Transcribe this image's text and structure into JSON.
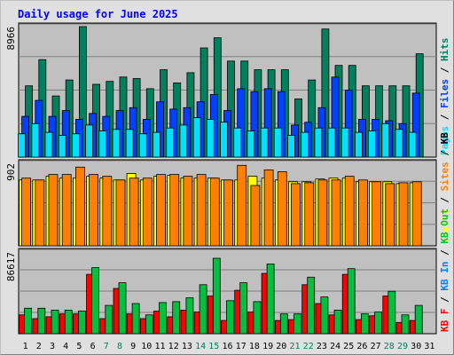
{
  "chart_data": {
    "type": "bar",
    "title": "Daily usage for June 2025",
    "days": [
      "1",
      "2",
      "3",
      "4",
      "5",
      "6",
      "7",
      "8",
      "9",
      "10",
      "11",
      "12",
      "13",
      "14",
      "15",
      "16",
      "17",
      "18",
      "19",
      "20",
      "21",
      "22",
      "23",
      "24",
      "25",
      "26",
      "27",
      "28",
      "29",
      "30",
      "31"
    ],
    "weekend_days": [
      "7",
      "8",
      "14",
      "15",
      "21",
      "22",
      "28",
      "29"
    ],
    "colors": {
      "title": "#0000ff",
      "background": "#e0e0e0",
      "panel": "#c0c0c0",
      "hits": "#00805c",
      "files": "#0040ff",
      "pages": "#00e0ff",
      "visits": "#ffff00",
      "sites": "#ff8000",
      "kb_out": "#00c040",
      "kb_in": "#0080ff",
      "kb_f": "#ff0000",
      "weekday_tick": "#000000",
      "weekend_tick": "#00805c"
    },
    "panels": [
      {
        "ymax_label": "8966",
        "ymax": 8966,
        "legend": [
          {
            "text": "Pages",
            "color": "#00e0ff"
          },
          {
            "text": " / ",
            "color": "#000000"
          },
          {
            "text": "Files",
            "color": "#0040ff"
          },
          {
            "text": " / ",
            "color": "#000000"
          },
          {
            "text": "Hits",
            "color": "#00805c"
          }
        ],
        "series": [
          {
            "name": "Hits",
            "color": "#00805c",
            "values": [
              4900,
              6700,
              4200,
              5300,
              8966,
              5000,
              5200,
              5500,
              5400,
              4700,
              6000,
              5100,
              5800,
              7500,
              8200,
              6600,
              6600,
              6000,
              6000,
              6000,
              4000,
              5300,
              8800,
              6300,
              6300,
              4900,
              4900,
              4900,
              4900,
              7100,
              0
            ]
          },
          {
            "name": "Files",
            "color": "#0040ff",
            "values": [
              2800,
              3900,
              2800,
              3200,
              2600,
              3000,
              2800,
              3200,
              3400,
              2600,
              3800,
              3300,
              3400,
              3800,
              4300,
              3200,
              4700,
              4500,
              4700,
              4500,
              2200,
              2400,
              3400,
              5500,
              4600,
              2600,
              2600,
              2500,
              2300,
              4400,
              0
            ]
          },
          {
            "name": "Pages",
            "color": "#00e0ff",
            "values": [
              1600,
              2300,
              1700,
              1500,
              1600,
              2200,
              1800,
              1900,
              1900,
              1600,
              1700,
              2000,
              2200,
              2700,
              2600,
              2400,
              2000,
              1800,
              2000,
              2000,
              1500,
              1700,
              2000,
              2000,
              2000,
              1700,
              1800,
              2300,
              1900,
              1700,
              0
            ]
          }
        ]
      },
      {
        "ymax_label": "902",
        "ymax": 902,
        "legend": [
          {
            "text": "Visits",
            "color": "#ffff00"
          },
          {
            "text": " / ",
            "color": "#000000"
          },
          {
            "text": "Sites",
            "color": "#ff8000"
          },
          {
            "text": " / ",
            "color": "#000000"
          },
          {
            "text": "KB",
            "color": "#000000"
          }
        ],
        "series": [
          {
            "name": "Visits",
            "color": "#ffff00",
            "values": [
              720,
              720,
              760,
              740,
              740,
              760,
              740,
              720,
              790,
              720,
              760,
              770,
              740,
              740,
              740,
              720,
              720,
              760,
              740,
              720,
              700,
              700,
              730,
              740,
              740,
              700,
              700,
              700,
              680,
              690,
              0
            ]
          },
          {
            "name": "Sites",
            "color": "#ff8000",
            "values": [
              740,
              720,
              780,
              780,
              860,
              780,
              760,
              720,
              740,
              740,
              780,
              780,
              760,
              780,
              740,
              720,
              880,
              660,
              830,
              810,
              680,
              690,
              720,
              720,
              760,
              720,
              700,
              680,
              690,
              700,
              0
            ]
          }
        ]
      },
      {
        "ymax_label": "86617",
        "ymax": 86617,
        "legend": [
          {
            "text": "KB F",
            "color": "#ff0000"
          },
          {
            "text": " / ",
            "color": "#000000"
          },
          {
            "text": "KB In",
            "color": "#0080ff"
          },
          {
            "text": " / ",
            "color": "#000000"
          },
          {
            "text": "KB Out",
            "color": "#00c040"
          }
        ],
        "series": [
          {
            "name": "KB F",
            "color": "#ff0000",
            "values": [
              20000,
              16000,
              18000,
              21000,
              21000,
              63000,
              16000,
              48000,
              21000,
              16000,
              24000,
              18000,
              25000,
              23000,
              40000,
              14000,
              46000,
              23000,
              64000,
              14000,
              15000,
              52000,
              32000,
              20000,
              63000,
              15000,
              19000,
              40000,
              12000,
              14000,
              0
            ]
          },
          {
            "name": "KB Out",
            "color": "#00c040",
            "values": [
              27000,
              27000,
              25000,
              25000,
              24000,
              70000,
              30000,
              54000,
              32000,
              20000,
              33000,
              34000,
              38000,
              52000,
              80000,
              35000,
              54000,
              34000,
              74000,
              21000,
              21000,
              60000,
              39000,
              25000,
              69000,
              21000,
              23000,
              45000,
              20000,
              30000,
              0
            ]
          }
        ]
      }
    ]
  }
}
